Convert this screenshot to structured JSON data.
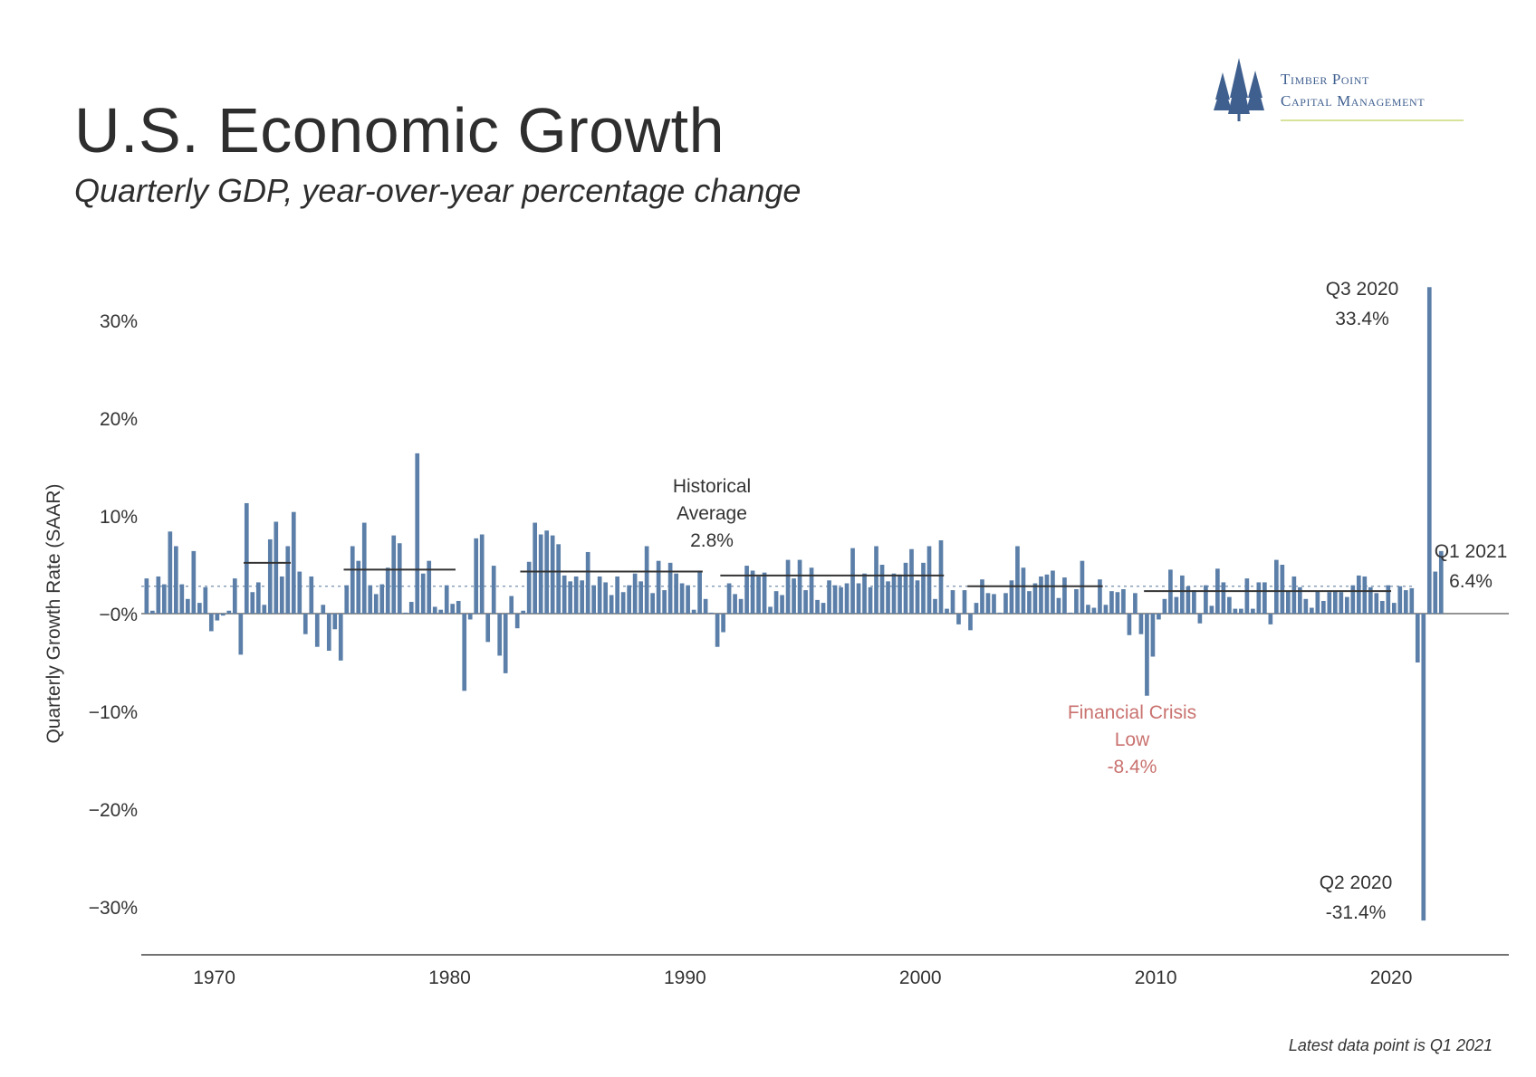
{
  "header": {
    "title": "U.S. Economic Growth",
    "subtitle": "Quarterly GDP, year-over-year percentage change"
  },
  "logo": {
    "line1": "Timber Point",
    "line2": "Capital Management",
    "icon": "pine-trees-icon"
  },
  "footnote": "Latest data point is Q1 2021",
  "colors": {
    "bar": "#5b7fa8",
    "crisis_label": "#c9726f",
    "axis": "#444444",
    "average_line": "#333333",
    "historical_dotted": "#8aa0b8"
  },
  "chart_data": {
    "type": "bar",
    "ylabel": "Quarterly Growth Rate (SAAR)",
    "xlim": [
      1966.9,
      2025.0
    ],
    "ylim": [
      -35,
      35
    ],
    "y_ticks": [
      {
        "value": 30,
        "label": "30%"
      },
      {
        "value": 20,
        "label": "20%"
      },
      {
        "value": 10,
        "label": "10%"
      },
      {
        "value": 0,
        "label": "−0%"
      },
      {
        "value": -10,
        "label": "−10%"
      },
      {
        "value": -20,
        "label": "−20%"
      },
      {
        "value": -30,
        "label": "−30%"
      }
    ],
    "x_ticks": [
      {
        "value": 1970,
        "label": "1970"
      },
      {
        "value": 1980,
        "label": "1980"
      },
      {
        "value": 1990,
        "label": "1990"
      },
      {
        "value": 2000,
        "label": "2000"
      },
      {
        "value": 2010,
        "label": "2010"
      },
      {
        "value": 2020,
        "label": "2020"
      }
    ],
    "start": 1967.0,
    "step": 0.25,
    "values": [
      3.6,
      0.3,
      3.8,
      3.0,
      8.4,
      6.9,
      3.0,
      1.5,
      6.4,
      1.1,
      2.7,
      -1.8,
      -0.7,
      -0.2,
      0.3,
      3.6,
      -4.2,
      11.3,
      2.2,
      3.2,
      0.9,
      7.6,
      9.4,
      3.8,
      6.9,
      10.4,
      4.3,
      -2.1,
      3.8,
      -3.4,
      0.9,
      -3.8,
      -1.6,
      -4.8,
      2.9,
      6.9,
      5.4,
      9.3,
      2.9,
      2.0,
      3.0,
      4.7,
      8.0,
      7.2,
      0.1,
      1.2,
      16.4,
      4.1,
      5.4,
      0.7,
      0.4,
      2.9,
      1.0,
      1.3,
      -7.9,
      -0.6,
      7.7,
      8.1,
      -2.9,
      4.9,
      -4.3,
      -6.1,
      1.8,
      -1.5,
      0.3,
      5.3,
      9.3,
      8.1,
      8.5,
      8.0,
      7.1,
      3.9,
      3.3,
      3.8,
      3.4,
      6.3,
      2.9,
      3.8,
      3.2,
      1.9,
      3.8,
      2.2,
      2.9,
      4.1,
      3.3,
      6.9,
      2.1,
      5.4,
      2.4,
      5.2,
      4.1,
      3.1,
      2.9,
      0.4,
      4.4,
      1.5,
      0.1,
      -3.4,
      -1.9,
      3.1,
      2.0,
      1.5,
      4.9,
      4.4,
      3.8,
      4.2,
      0.7,
      2.3,
      1.9,
      5.5,
      3.6,
      5.5,
      2.4,
      4.7,
      1.4,
      1.1,
      3.4,
      2.9,
      2.7,
      3.1,
      6.7,
      3.1,
      4.1,
      2.7,
      6.9,
      5.0,
      3.3,
      4.1,
      4.0,
      5.2,
      6.6,
      3.4,
      5.2,
      6.9,
      1.5,
      7.5,
      0.5,
      2.4,
      -1.1,
      2.4,
      -1.7,
      1.1,
      3.5,
      2.1,
      2.0,
      0.1,
      2.1,
      3.4,
      6.9,
      4.7,
      2.3,
      3.1,
      3.8,
      4.0,
      4.4,
      1.6,
      3.7,
      0.1,
      2.5,
      5.4,
      0.9,
      0.6,
      3.5,
      0.9,
      2.3,
      2.2,
      2.5,
      -2.2,
      2.1,
      -2.1,
      -8.4,
      -4.4,
      -0.6,
      1.5,
      4.5,
      1.7,
      3.9,
      2.8,
      2.4,
      -1.0,
      2.9,
      0.8,
      4.6,
      3.2,
      1.7,
      0.5,
      0.5,
      3.6,
      0.5,
      3.2,
      3.2,
      -1.1,
      5.5,
      5.0,
      2.3,
      3.8,
      2.7,
      1.5,
      0.6,
      2.3,
      1.3,
      2.2,
      2.3,
      2.2,
      1.7,
      2.9,
      3.9,
      3.8,
      2.7,
      2.1,
      1.3,
      2.9,
      1.1,
      2.8,
      2.4,
      2.6,
      -5.0,
      -31.4,
      33.4,
      4.3,
      6.4
    ],
    "historical_average": 2.8,
    "decade_averages": [
      {
        "x0": 1971.25,
        "x1": 1973.25,
        "value": 5.2
      },
      {
        "x0": 1975.5,
        "x1": 1980.25,
        "value": 4.5
      },
      {
        "x0": 1983.0,
        "x1": 1990.75,
        "value": 4.3
      },
      {
        "x0": 1991.5,
        "x1": 2001.0,
        "value": 3.9
      },
      {
        "x0": 2002.0,
        "x1": 2007.75,
        "value": 2.8
      },
      {
        "x0": 2009.5,
        "x1": 2020.0,
        "value": 2.3
      }
    ],
    "annotations": [
      {
        "id": "historical-average",
        "lines": [
          "Historical",
          "Average",
          "2.8%"
        ]
      },
      {
        "id": "financial-crisis",
        "lines": [
          "Financial Crisis",
          "Low",
          "-8.4%"
        ]
      },
      {
        "id": "q3-2020",
        "lines": [
          "Q3 2020",
          "33.4%"
        ]
      },
      {
        "id": "q2-2020",
        "lines": [
          "Q2 2020",
          "-31.4%"
        ]
      },
      {
        "id": "q1-2021",
        "lines": [
          "Q1 2021",
          "6.4%"
        ]
      }
    ]
  }
}
